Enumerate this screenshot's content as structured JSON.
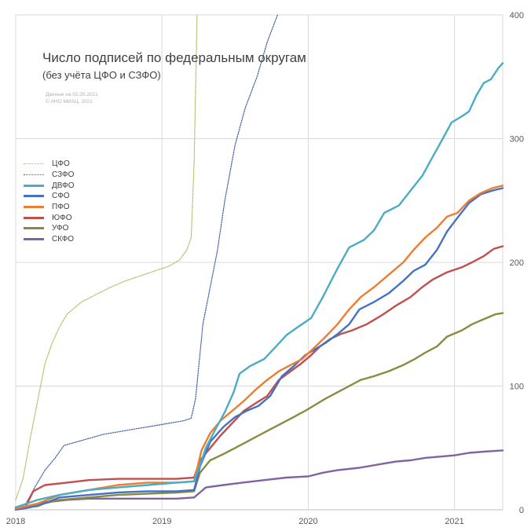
{
  "title": "Число подписей по федеральным округам",
  "subtitle": "(без учёта ЦФО и СЗФО)",
  "source_lines": [
    "Данные на 02.05.2021",
    "© АНО МИАЦ, 2021"
  ],
  "chart_data": {
    "type": "line",
    "title": "Число подписей по федеральным округам",
    "subtitle": "(без учёта ЦФО и СЗФО)",
    "xlabel": "",
    "ylabel": "",
    "xlim": [
      2018.0,
      2021.33
    ],
    "ylim": [
      0,
      400
    ],
    "x_ticks": [
      "2018",
      "2019",
      "2020",
      "2021"
    ],
    "y_ticks": [
      "0",
      "100",
      "200",
      "300",
      "400"
    ],
    "y_axis_side": "right",
    "grid": true,
    "legend_position": "left",
    "series": [
      {
        "name": "ЦФО",
        "color": "#a8bf63",
        "style": "dotted",
        "points": [
          [
            2018.0,
            8
          ],
          [
            2018.05,
            25
          ],
          [
            2018.1,
            58
          ],
          [
            2018.15,
            88
          ],
          [
            2018.2,
            118
          ],
          [
            2018.25,
            135
          ],
          [
            2018.3,
            148
          ],
          [
            2018.35,
            158
          ],
          [
            2018.45,
            168
          ],
          [
            2018.55,
            174
          ],
          [
            2018.65,
            180
          ],
          [
            2018.75,
            185
          ],
          [
            2018.85,
            189
          ],
          [
            2018.95,
            193
          ],
          [
            2019.05,
            197
          ],
          [
            2019.12,
            202
          ],
          [
            2019.17,
            210
          ],
          [
            2019.2,
            220
          ],
          [
            2019.22,
            280
          ],
          [
            2019.24,
            400
          ]
        ]
      },
      {
        "name": "СЗФО",
        "color": "#3f5ea8",
        "style": "dotted",
        "points": [
          [
            2018.0,
            0
          ],
          [
            2018.07,
            5
          ],
          [
            2018.13,
            18
          ],
          [
            2018.2,
            32
          ],
          [
            2018.27,
            42
          ],
          [
            2018.33,
            52
          ],
          [
            2018.45,
            56
          ],
          [
            2018.6,
            61
          ],
          [
            2018.75,
            64
          ],
          [
            2018.9,
            67
          ],
          [
            2019.05,
            70
          ],
          [
            2019.15,
            72
          ],
          [
            2019.2,
            74
          ],
          [
            2019.23,
            90
          ],
          [
            2019.28,
            150
          ],
          [
            2019.33,
            180
          ],
          [
            2019.38,
            210
          ],
          [
            2019.43,
            250
          ],
          [
            2019.5,
            295
          ],
          [
            2019.57,
            325
          ],
          [
            2019.65,
            350
          ],
          [
            2019.72,
            378
          ],
          [
            2019.79,
            400
          ]
        ]
      },
      {
        "name": "ДВФО",
        "color": "#4bacc6",
        "style": "solid",
        "points": [
          [
            2018.0,
            2
          ],
          [
            2018.15,
            8
          ],
          [
            2018.3,
            12
          ],
          [
            2018.5,
            16
          ],
          [
            2018.7,
            18
          ],
          [
            2018.9,
            20
          ],
          [
            2019.1,
            22
          ],
          [
            2019.22,
            23
          ],
          [
            2019.26,
            36
          ],
          [
            2019.3,
            50
          ],
          [
            2019.37,
            66
          ],
          [
            2019.43,
            79
          ],
          [
            2019.49,
            95
          ],
          [
            2019.53,
            110
          ],
          [
            2019.6,
            116
          ],
          [
            2019.7,
            122
          ],
          [
            2019.78,
            132
          ],
          [
            2019.85,
            141
          ],
          [
            2019.92,
            147
          ],
          [
            2020.02,
            155
          ],
          [
            2020.1,
            172
          ],
          [
            2020.2,
            195
          ],
          [
            2020.28,
            212
          ],
          [
            2020.38,
            218
          ],
          [
            2020.45,
            226
          ],
          [
            2020.52,
            240
          ],
          [
            2020.62,
            246
          ],
          [
            2020.7,
            258
          ],
          [
            2020.78,
            270
          ],
          [
            2020.85,
            285
          ],
          [
            2020.92,
            300
          ],
          [
            2020.98,
            313
          ],
          [
            2021.05,
            318
          ],
          [
            2021.1,
            322
          ],
          [
            2021.15,
            335
          ],
          [
            2021.2,
            345
          ],
          [
            2021.25,
            348
          ],
          [
            2021.3,
            357
          ],
          [
            2021.33,
            361
          ]
        ]
      },
      {
        "name": "СФО",
        "color": "#4472c4",
        "style": "solid",
        "points": [
          [
            2018.0,
            1
          ],
          [
            2018.15,
            3
          ],
          [
            2018.3,
            10
          ],
          [
            2018.5,
            12
          ],
          [
            2018.7,
            14
          ],
          [
            2018.9,
            15
          ],
          [
            2019.1,
            15
          ],
          [
            2019.22,
            16
          ],
          [
            2019.26,
            35
          ],
          [
            2019.33,
            55
          ],
          [
            2019.42,
            67
          ],
          [
            2019.5,
            75
          ],
          [
            2019.58,
            80
          ],
          [
            2019.66,
            84
          ],
          [
            2019.74,
            92
          ],
          [
            2019.82,
            108
          ],
          [
            2019.9,
            116
          ],
          [
            2019.98,
            125
          ],
          [
            2020.05,
            130
          ],
          [
            2020.12,
            135
          ],
          [
            2020.2,
            142
          ],
          [
            2020.28,
            150
          ],
          [
            2020.35,
            162
          ],
          [
            2020.45,
            168
          ],
          [
            2020.55,
            175
          ],
          [
            2020.65,
            185
          ],
          [
            2020.72,
            193
          ],
          [
            2020.8,
            198
          ],
          [
            2020.88,
            210
          ],
          [
            2020.95,
            225
          ],
          [
            2021.02,
            236
          ],
          [
            2021.1,
            248
          ],
          [
            2021.18,
            255
          ],
          [
            2021.26,
            258
          ],
          [
            2021.33,
            260
          ]
        ]
      },
      {
        "name": "ПФО",
        "color": "#ed7d31",
        "style": "solid",
        "points": [
          [
            2018.0,
            1
          ],
          [
            2018.15,
            5
          ],
          [
            2018.3,
            12
          ],
          [
            2018.5,
            16
          ],
          [
            2018.7,
            20
          ],
          [
            2018.9,
            22
          ],
          [
            2019.1,
            22
          ],
          [
            2019.22,
            23
          ],
          [
            2019.27,
            48
          ],
          [
            2019.33,
            62
          ],
          [
            2019.4,
            72
          ],
          [
            2019.48,
            80
          ],
          [
            2019.56,
            88
          ],
          [
            2019.64,
            97
          ],
          [
            2019.72,
            105
          ],
          [
            2019.8,
            112
          ],
          [
            2019.88,
            117
          ],
          [
            2019.96,
            122
          ],
          [
            2020.05,
            132
          ],
          [
            2020.12,
            140
          ],
          [
            2020.2,
            150
          ],
          [
            2020.28,
            162
          ],
          [
            2020.36,
            172
          ],
          [
            2020.45,
            180
          ],
          [
            2020.55,
            190
          ],
          [
            2020.65,
            200
          ],
          [
            2020.72,
            210
          ],
          [
            2020.8,
            220
          ],
          [
            2020.88,
            228
          ],
          [
            2020.95,
            237
          ],
          [
            2021.02,
            240
          ],
          [
            2021.1,
            250
          ],
          [
            2021.18,
            256
          ],
          [
            2021.26,
            260
          ],
          [
            2021.33,
            262
          ]
        ]
      },
      {
        "name": "ЮФО",
        "color": "#c0504d",
        "style": "solid",
        "points": [
          [
            2018.0,
            1
          ],
          [
            2018.07,
            3
          ],
          [
            2018.12,
            15
          ],
          [
            2018.2,
            20
          ],
          [
            2018.35,
            22
          ],
          [
            2018.5,
            24
          ],
          [
            2018.7,
            25
          ],
          [
            2018.9,
            25
          ],
          [
            2019.1,
            25
          ],
          [
            2019.22,
            26
          ],
          [
            2019.26,
            40
          ],
          [
            2019.33,
            50
          ],
          [
            2019.4,
            60
          ],
          [
            2019.48,
            70
          ],
          [
            2019.56,
            80
          ],
          [
            2019.64,
            86
          ],
          [
            2019.72,
            92
          ],
          [
            2019.8,
            105
          ],
          [
            2019.88,
            112
          ],
          [
            2019.95,
            118
          ],
          [
            2020.02,
            125
          ],
          [
            2020.08,
            132
          ],
          [
            2020.15,
            138
          ],
          [
            2020.22,
            142
          ],
          [
            2020.3,
            145
          ],
          [
            2020.4,
            150
          ],
          [
            2020.5,
            157
          ],
          [
            2020.6,
            165
          ],
          [
            2020.7,
            172
          ],
          [
            2020.78,
            180
          ],
          [
            2020.85,
            186
          ],
          [
            2020.95,
            192
          ],
          [
            2021.05,
            196
          ],
          [
            2021.12,
            200
          ],
          [
            2021.2,
            205
          ],
          [
            2021.27,
            211
          ],
          [
            2021.33,
            213
          ]
        ]
      },
      {
        "name": "УФО",
        "color": "#8a8a42",
        "style": "solid",
        "points": [
          [
            2018.0,
            1
          ],
          [
            2018.15,
            4
          ],
          [
            2018.3,
            8
          ],
          [
            2018.5,
            10
          ],
          [
            2018.7,
            12
          ],
          [
            2018.9,
            13
          ],
          [
            2019.1,
            14
          ],
          [
            2019.22,
            15
          ],
          [
            2019.26,
            30
          ],
          [
            2019.33,
            40
          ],
          [
            2019.42,
            45
          ],
          [
            2019.5,
            50
          ],
          [
            2019.58,
            55
          ],
          [
            2019.66,
            60
          ],
          [
            2019.74,
            65
          ],
          [
            2019.82,
            70
          ],
          [
            2019.9,
            75
          ],
          [
            2019.98,
            80
          ],
          [
            2020.05,
            85
          ],
          [
            2020.12,
            90
          ],
          [
            2020.2,
            95
          ],
          [
            2020.28,
            100
          ],
          [
            2020.36,
            105
          ],
          [
            2020.45,
            108
          ],
          [
            2020.55,
            112
          ],
          [
            2020.65,
            117
          ],
          [
            2020.73,
            122
          ],
          [
            2020.8,
            127
          ],
          [
            2020.88,
            132
          ],
          [
            2020.95,
            140
          ],
          [
            2021.05,
            145
          ],
          [
            2021.12,
            150
          ],
          [
            2021.2,
            154
          ],
          [
            2021.28,
            158
          ],
          [
            2021.33,
            159
          ]
        ]
      },
      {
        "name": "СКФО",
        "color": "#8064a2",
        "style": "solid",
        "points": [
          [
            2018.0,
            0
          ],
          [
            2018.1,
            2
          ],
          [
            2018.2,
            6
          ],
          [
            2018.35,
            8
          ],
          [
            2018.5,
            9
          ],
          [
            2018.7,
            9
          ],
          [
            2018.9,
            9
          ],
          [
            2019.1,
            9
          ],
          [
            2019.22,
            10
          ],
          [
            2019.3,
            18
          ],
          [
            2019.42,
            20
          ],
          [
            2019.55,
            22
          ],
          [
            2019.7,
            24
          ],
          [
            2019.85,
            26
          ],
          [
            2020.0,
            27
          ],
          [
            2020.1,
            30
          ],
          [
            2020.2,
            32
          ],
          [
            2020.35,
            34
          ],
          [
            2020.5,
            37
          ],
          [
            2020.6,
            39
          ],
          [
            2020.7,
            40
          ],
          [
            2020.8,
            42
          ],
          [
            2020.9,
            43
          ],
          [
            2021.0,
            44
          ],
          [
            2021.1,
            46
          ],
          [
            2021.2,
            47
          ],
          [
            2021.33,
            48
          ]
        ]
      }
    ]
  }
}
